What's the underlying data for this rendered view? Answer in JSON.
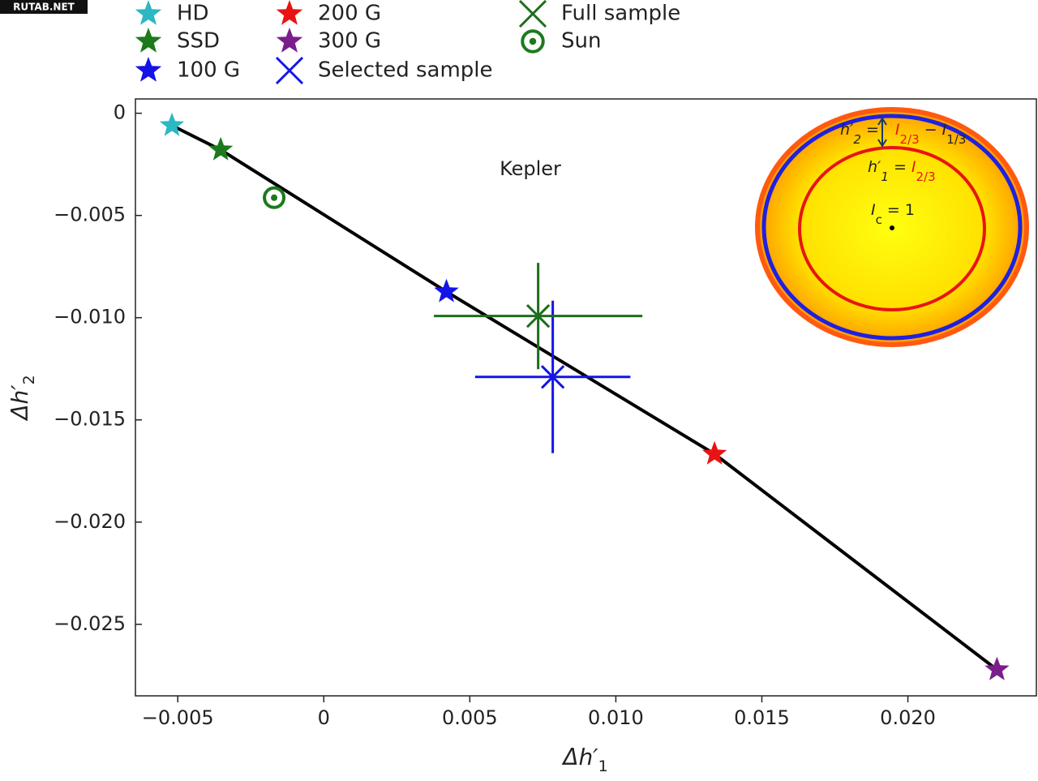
{
  "watermark": "RUTAB.NET",
  "chart_data": {
    "type": "scatter",
    "annotation": "Kepler",
    "x_label": [
      "Δh′",
      "1"
    ],
    "y_label": [
      "Δh′",
      "2"
    ],
    "xlim": [
      -0.00645,
      0.0244
    ],
    "ylim": [
      -0.0285,
      0.0007
    ],
    "xticks": [
      {
        "value": -0.005,
        "label": "−0.005"
      },
      0,
      0.005,
      {
        "value": 0.01,
        "label": "0.010"
      },
      0.015,
      {
        "value": 0.02,
        "label": "0.020"
      }
    ],
    "yticks": [
      0,
      {
        "value": -0.005,
        "label": "−0.005"
      },
      {
        "value": -0.01,
        "label": "−0.010"
      },
      {
        "value": -0.015,
        "label": "−0.015"
      },
      {
        "value": -0.02,
        "label": "−0.020"
      },
      {
        "value": -0.025,
        "label": "−0.025"
      }
    ],
    "series": [
      {
        "name": "HD",
        "color": "#2bb8c4",
        "marker": "star",
        "x": [
          -0.0052
        ],
        "values": [
          -0.0006
        ]
      },
      {
        "name": "SSD",
        "color": "#1c7a1c",
        "marker": "star",
        "x": [
          -0.00353
        ],
        "values": [
          -0.00179
        ]
      },
      {
        "name": "100 G",
        "color": "#1414e6",
        "marker": "star",
        "x": [
          0.0042
        ],
        "values": [
          -0.00873
        ]
      },
      {
        "name": "200 G",
        "color": "#e81414",
        "marker": "star",
        "x": [
          0.01338
        ],
        "values": [
          -0.01667
        ]
      },
      {
        "name": "300 G",
        "color": "#7a1e8c",
        "marker": "star",
        "x": [
          0.02305
        ],
        "values": [
          -0.02722
        ]
      },
      {
        "name": "Selected sample",
        "color": "#1414e6",
        "marker": "x",
        "x": [
          0.00784
        ],
        "values": [
          -0.0129
        ],
        "x_errors": [
          0.00266
        ],
        "errors": [
          0.00373
        ]
      },
      {
        "name": "Full sample",
        "color": "#1c6e1c",
        "marker": "x",
        "x": [
          0.00734
        ],
        "values": [
          -0.00992
        ],
        "x_errors": [
          0.00357
        ],
        "errors": [
          0.0026
        ]
      },
      {
        "name": "Sun",
        "color": "#1c7a1c",
        "marker": "sun",
        "x": [
          -0.0017
        ],
        "values": [
          -0.00413
        ]
      }
    ],
    "line": {
      "color": "#000000",
      "x": [
        -0.0052,
        -0.00353,
        0.0042,
        0.01338,
        0.02305
      ],
      "values": [
        -0.0006,
        -0.00179,
        -0.00873,
        -0.01667,
        -0.02722
      ]
    },
    "inset": {
      "h2": [
        "h′",
        "2",
        " = ",
        "I",
        "2/3",
        " − ",
        "I",
        "1/3"
      ],
      "h1": [
        "h′",
        "1",
        " = ",
        "I",
        "2/3"
      ],
      "ic": [
        "I",
        "c",
        " = 1"
      ]
    }
  }
}
